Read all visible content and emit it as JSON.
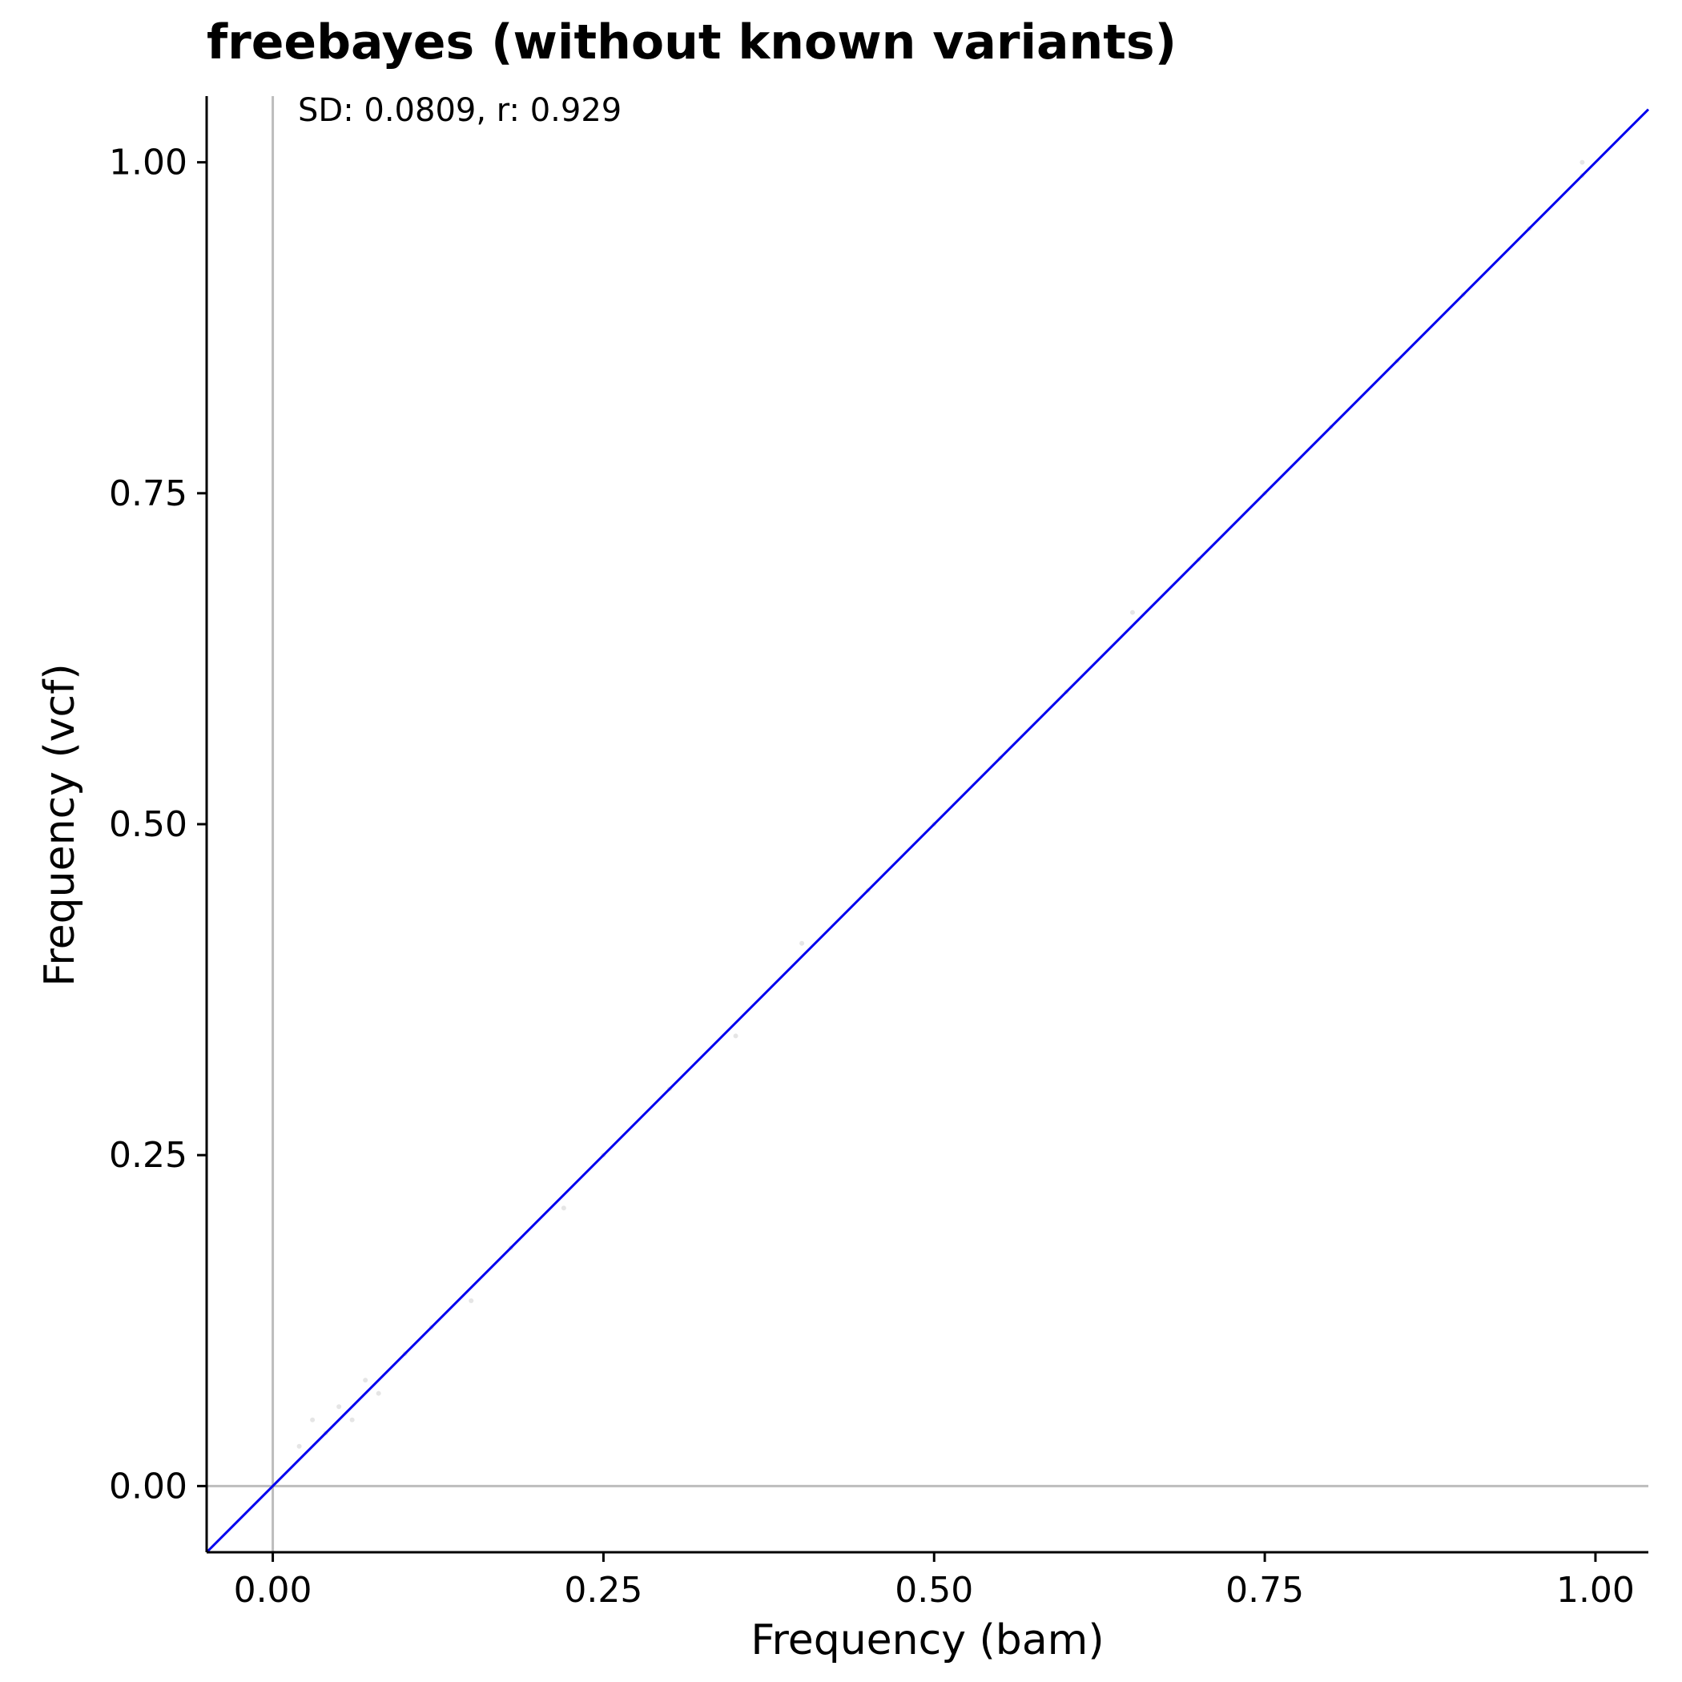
{
  "chart_data": {
    "type": "scatter",
    "title": "freebayes (without known variants)",
    "annotation": "SD: 0.0809, r: 0.929",
    "xlabel": "Frequency (bam)",
    "ylabel": "Frequency (vcf)",
    "xlim": [
      -0.05,
      1.04
    ],
    "ylim": [
      -0.05,
      1.05
    ],
    "xticks": [
      0.0,
      0.25,
      0.5,
      0.75,
      1.0
    ],
    "xtick_labels": [
      "0.00",
      "0.25",
      "0.50",
      "0.75",
      "1.00"
    ],
    "yticks": [
      0.0,
      0.25,
      0.5,
      0.75,
      1.0
    ],
    "ytick_labels": [
      "0.00",
      "0.25",
      "0.50",
      "0.75",
      "1.00"
    ],
    "grid": false,
    "reference_lines": {
      "x": 0,
      "y": 0,
      "color": "#bdbdbd"
    },
    "identity_line": {
      "slope": 1,
      "intercept": 0,
      "color": "#0000ee"
    },
    "point_color": "#000000",
    "point_alpha": 0.1,
    "series": [
      {
        "values": [
          {
            "x": 0.02,
            "y": 0.03
          },
          {
            "x": 0.03,
            "y": 0.05
          },
          {
            "x": 0.04,
            "y": 0.04
          },
          {
            "x": 0.05,
            "y": 0.06
          },
          {
            "x": 0.06,
            "y": 0.05
          },
          {
            "x": 0.07,
            "y": 0.08
          },
          {
            "x": 0.08,
            "y": 0.07
          },
          {
            "x": 0.1,
            "y": 0.1
          },
          {
            "x": 0.12,
            "y": 0.12
          },
          {
            "x": 0.15,
            "y": 0.14
          },
          {
            "x": 0.18,
            "y": 0.18
          },
          {
            "x": 0.22,
            "y": 0.21
          },
          {
            "x": 0.25,
            "y": 0.25
          },
          {
            "x": 0.3,
            "y": 0.3
          },
          {
            "x": 0.35,
            "y": 0.34
          },
          {
            "x": 0.4,
            "y": 0.41
          },
          {
            "x": 0.45,
            "y": 0.45
          },
          {
            "x": 0.5,
            "y": 0.5
          },
          {
            "x": 0.55,
            "y": 0.55
          },
          {
            "x": 0.6,
            "y": 0.6
          },
          {
            "x": 0.65,
            "y": 0.66
          },
          {
            "x": 0.7,
            "y": 0.7
          },
          {
            "x": 0.75,
            "y": 0.75
          },
          {
            "x": 0.8,
            "y": 0.8
          },
          {
            "x": 0.85,
            "y": 0.85
          },
          {
            "x": 0.9,
            "y": 0.9
          },
          {
            "x": 0.95,
            "y": 0.95
          },
          {
            "x": 0.99,
            "y": 0.99
          },
          {
            "x": 0.99,
            "y": 1.0
          }
        ]
      }
    ]
  }
}
